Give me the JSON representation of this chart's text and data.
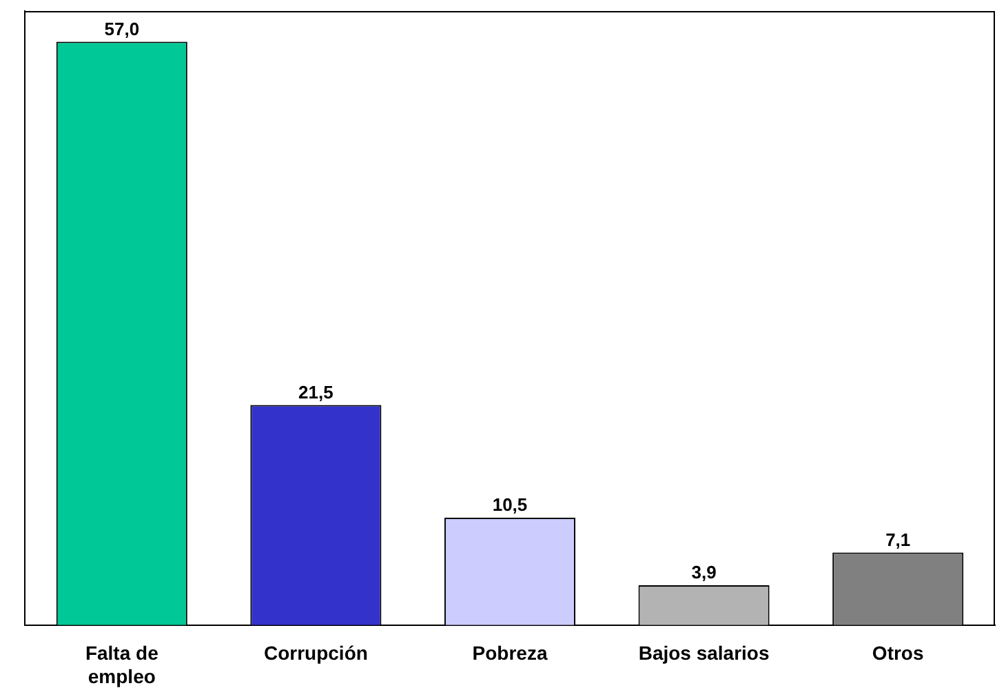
{
  "chart_data": {
    "type": "bar",
    "categories": [
      "Falta de\nempleo",
      "Corrupción",
      "Pobreza",
      "Bajos salarios",
      "Otros"
    ],
    "values": [
      57.0,
      21.5,
      10.5,
      3.9,
      7.1
    ],
    "colors": [
      "#00c896",
      "#3333cc",
      "#ccccff",
      "#b3b3b3",
      "#808080"
    ],
    "value_labels": [
      "57,0",
      "21,5",
      "10,5",
      "3,9",
      "7,1"
    ],
    "ylim": [
      0,
      60
    ],
    "tick_labels": "x",
    "grid": false,
    "legend": false
  }
}
